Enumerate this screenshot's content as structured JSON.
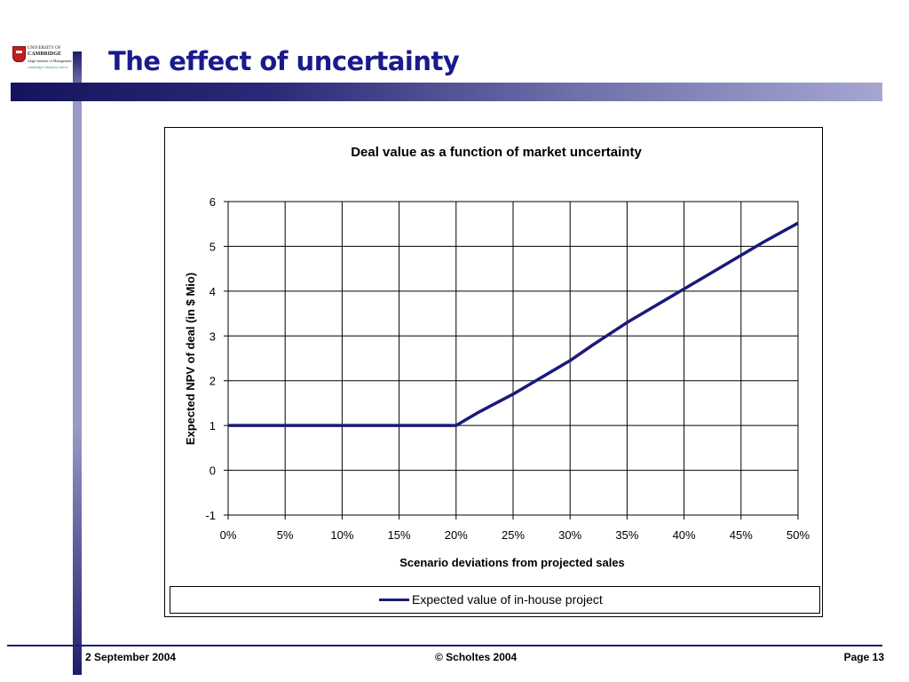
{
  "slide": {
    "title": "The effect of uncertainty",
    "logo": {
      "line1": "UNIVERSITY OF",
      "line2": "CAMBRIDGE",
      "line3": "Judge Institute of Management",
      "line4": "cambridge's business school"
    },
    "footer": {
      "date": "2 September 2004",
      "copyright": "© Scholtes 2004",
      "page": "Page 13"
    },
    "colors": {
      "title": "#1a1a8c",
      "band_dark": "#14145e",
      "band_light": "#a6a6d2",
      "series": "#1a1a7a"
    }
  },
  "chart_data": {
    "type": "line",
    "title": "Deal value as a function of market uncertainty",
    "xlabel": "Scenario deviations from projected sales",
    "ylabel": "Expected NPV of deal (in $ Mio)",
    "x_ticks": [
      "0%",
      "5%",
      "10%",
      "15%",
      "20%",
      "25%",
      "30%",
      "35%",
      "40%",
      "45%",
      "50%"
    ],
    "y_ticks": [
      "-1",
      "0",
      "1",
      "2",
      "3",
      "4",
      "5",
      "6"
    ],
    "xlim": [
      0,
      50
    ],
    "ylim": [
      -1,
      6
    ],
    "grid": true,
    "legend_position": "bottom",
    "series": [
      {
        "name": "Expected value of in-house project",
        "color": "#1a1a7a",
        "x": [
          0,
          5,
          10,
          15,
          20,
          22,
          25,
          27,
          30,
          32,
          35,
          37,
          40,
          42,
          45,
          47,
          50
        ],
        "y": [
          1,
          1,
          1,
          1,
          1,
          1.3,
          1.7,
          2.0,
          2.45,
          2.8,
          3.3,
          3.6,
          4.05,
          4.35,
          4.8,
          5.1,
          5.52
        ]
      }
    ]
  }
}
